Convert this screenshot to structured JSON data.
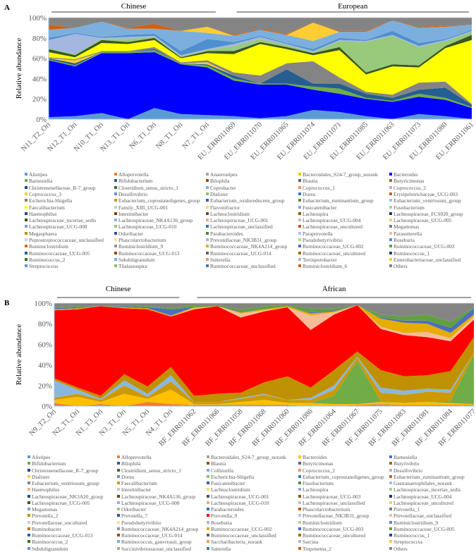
{
  "palette_variants": [
    [
      "#5B9BD5",
      "#ED7D31",
      "#A5A5A5",
      "#FFC000",
      "#4472C4",
      "#70AD47"
    ],
    [
      "#255E91",
      "#9E480E",
      "#636363",
      "#997300",
      "#264478",
      "#43682B"
    ],
    [
      "#7CAFDD",
      "#F1975A",
      "#B7B7B7",
      "#FFCD33",
      "#698ED0",
      "#8CC168"
    ],
    [
      "#327DC2",
      "#D26012",
      "#848484",
      "#CC9A00",
      "#3A5FA8",
      "#5A8A39"
    ],
    [
      "#9DC3E6",
      "#F4B183",
      "#C9C9C9",
      "#FFD966",
      "#8FAADC",
      "#A9D18E"
    ],
    [
      "#1F4E79",
      "#843C0C",
      "#525252",
      "#7F6000",
      "#203864",
      "#385723"
    ],
    [
      "#8AB7E0",
      "#F3A873",
      "#C0C0C0",
      "#FFD34D",
      "#7E9FD6",
      "#99C97A"
    ],
    [
      "#2E75B6",
      "#C55A11",
      "#7B7B7B",
      "#BF9000",
      "#2F5597",
      "#548235"
    ],
    [
      "#A9C9EA",
      "#F6BC98",
      "#D0D0D0",
      "#FFE08A",
      "#A3B7E0",
      "#B5D69C"
    ],
    [
      "#4F8FCF",
      "#E06A1F",
      "#959595",
      "#E6AC00",
      "#4A6FBF",
      "#62A03F"
    ]
  ],
  "chart_data": [
    {
      "panel_label": "A",
      "type": "area",
      "stacked": "percent",
      "title": "",
      "ylabel": "Relative abundance",
      "ylim": [
        0,
        100
      ],
      "yticks": [
        "0%",
        "20%",
        "40%",
        "60%",
        "80%",
        "100%"
      ],
      "groups": [
        {
          "label": "Chinese",
          "from": 0,
          "to": 6
        },
        {
          "label": "European",
          "from": 7,
          "to": 16
        }
      ],
      "categories": [
        "N11_T2_Ori",
        "N12_T1_Ori",
        "N10_T1_Ori",
        "N13_T1_Ori",
        "N6_T1_Ori",
        "N8_T1_Ori",
        "N7_T1_Ori",
        "EU_ERR011069",
        "EU_ERR011070",
        "EU_ERR011065",
        "EU_ERR011074",
        "EU_ERR011071",
        "EU_ERR011085",
        "EU_ERR011063",
        "EU_ERR011073",
        "EU_ERR011080",
        "EU_ERR011061"
      ],
      "color_overrides": {
        "Bacteroides": "#0000FF",
        "Faecalibacterium": "#FFFF00"
      },
      "series": [
        {
          "name": "Alistipes",
          "values": [
            2,
            3,
            6,
            0,
            11,
            5,
            4,
            3,
            1,
            3,
            9,
            7,
            3,
            0,
            5,
            3,
            0
          ]
        },
        {
          "name": "Bacteroides",
          "values": [
            56,
            49,
            59,
            65,
            55,
            49,
            47,
            35,
            33,
            31,
            20,
            18,
            17,
            17,
            17,
            16,
            11
          ]
        },
        {
          "name": "Barnesiella",
          "values": [
            1,
            1,
            1,
            1,
            2,
            1,
            2,
            2,
            1,
            1,
            3,
            5,
            1,
            1,
            3,
            2,
            1
          ]
        },
        {
          "name": "Bifidobacterium",
          "values": [
            1,
            2,
            0,
            0,
            1,
            0,
            1,
            3,
            0,
            14,
            3,
            5,
            4,
            3,
            4,
            10,
            2
          ]
        },
        {
          "name": "Coprococcus_3",
          "values": [
            0,
            3,
            0,
            0,
            0,
            0,
            2,
            0,
            0,
            0,
            0,
            0,
            0,
            0,
            0,
            0,
            0
          ]
        },
        {
          "name": "Escherichia-Shigella",
          "values": [
            1,
            1,
            1,
            1,
            2,
            1,
            2,
            3,
            8,
            6,
            22,
            6,
            2,
            3,
            7,
            6,
            1
          ]
        },
        {
          "name": "Faecalibacterium",
          "values": [
            5,
            2,
            8,
            7,
            7,
            4,
            7,
            18,
            31,
            14,
            6,
            27,
            17,
            28,
            15,
            33,
            63
          ]
        },
        {
          "name": "Lachnospiraceae_incertae_sedis",
          "values": [
            3,
            2,
            3,
            2,
            2,
            1,
            2,
            3,
            2,
            2,
            2,
            3,
            2,
            2,
            2,
            2,
            5
          ]
        },
        {
          "name": "Lachnospiraceae_UCG-010",
          "values": [
            1,
            1,
            1,
            3,
            1,
            1,
            1,
            5,
            3,
            2,
            1,
            6,
            30,
            28,
            18,
            5,
            3
          ]
        },
        {
          "name": "Prevotellaceae_NK3B31_group",
          "values": [
            8,
            20,
            1,
            2,
            1,
            1,
            1,
            2,
            2,
            1,
            1,
            1,
            1,
            1,
            1,
            1,
            1
          ]
        },
        {
          "name": "Roseburia",
          "values": [
            2,
            1,
            1,
            2,
            2,
            4,
            10,
            2,
            1,
            1,
            2,
            2,
            1,
            4,
            3,
            1,
            1
          ]
        },
        {
          "name": "Subdoligranulum",
          "values": [
            8,
            5,
            15,
            6,
            5,
            20,
            6,
            6,
            6,
            8,
            8,
            6,
            8,
            10,
            15,
            12,
            5
          ]
        },
        {
          "name": "Enterobacteriaceae_unclassified",
          "values": [
            0,
            0,
            0,
            0,
            0,
            0,
            6,
            0,
            0,
            0,
            18,
            0,
            0,
            0,
            0,
            0,
            0
          ]
        },
        {
          "name": "Ruminiclostridium_6",
          "values": [
            5,
            0,
            0,
            1,
            5,
            0,
            0,
            1,
            1,
            1,
            0,
            1,
            1,
            0,
            1,
            1,
            0
          ]
        },
        {
          "name": "Others",
          "values": "remainder"
        }
      ],
      "legend": [
        "Alistipes",
        "Alloprevotella",
        "Anaerostipes",
        "Bacteroidales_S24-7_group_norank",
        "Bacteroides",
        "Barnesiella",
        "Bifidobacterium",
        "Bilophila",
        "Blautia",
        "Butyricimonas",
        "Christensenellaceae_R-7_group",
        "Clostridium_sensu_stricto_1",
        "Coprobacter",
        "Coprococcus_1",
        "Coprococcus_2",
        "Coprococcus_3",
        "Desulfovibrio",
        "Dialister",
        "Dorea",
        "Erysipelotrichaceae_UCG-003",
        "Escherichia-Shigella",
        "Eubacterium_coprostanoligenes_group",
        "Eubacterium_oxidoreducens_group",
        "Eubacterium_ruminantium_group",
        "Eubacterium_ventriosum_group",
        "Faecalibacterium",
        "Family_XIII_UCG-001",
        "Flavonifractor",
        "Fusicatenibacter",
        "Fusobacterium",
        "Haemophilus",
        "Intestinibacter",
        "Lachnoclostridium",
        "Lachnospira",
        "Lachnospiraceae_FCS020_group",
        "Lachnospiraceae_incertae_sedis",
        "Lachnospiraceae_NK4A136_group",
        "Lachnospiraceae_UCG-001",
        "Lachnospiraceae_UCG-004",
        "Lachnospiraceae_UCG-005",
        "Lachnospiraceae_UCG-008",
        "Lachnospiraceae_UCG-010",
        "Lachnospiraceae_unclassified",
        "Lachnospiraceae_uncultured",
        "Megamonas",
        "Megasphaera",
        "Odoribacter",
        "Parabacteroides",
        "Paraprevotella",
        "Parasutterella",
        "Peptostreptococcaceae_unclassified",
        "Phascolarctobacterium",
        "Prevotellaceae_NK3B31_group",
        "Pseudobutyrivibrio",
        "Roseburia",
        "Ruminiclostridium",
        "Ruminiclostridium_9",
        "Ruminococcaceae_NK4A214_group",
        "Ruminococcaceae_UCG-002",
        "Ruminococcaceae_UCG-003",
        "Ruminococcaceae_UCG-005",
        "Ruminococcaceae_UCG-013",
        "Ruminococcaceae_UCG-014",
        "Ruminococcaceae_uncultured",
        "Ruminococcus_1",
        "Ruminococcus_2",
        "Subdoligranulum",
        "Sutterella",
        "Terrisporobacter",
        "Enterobacteriaceae_unclassified",
        "Streptococcus",
        "Thalassospira",
        "Ruminococcaceae_unclassified",
        "Ruminiclostridium_6",
        "Others"
      ],
      "legend_placement": "bottom"
    },
    {
      "panel_label": "B",
      "type": "area",
      "stacked": "percent",
      "title": "",
      "ylabel": "Relative abundance",
      "ylim": [
        0,
        100
      ],
      "yticks": [
        "0%",
        "20%",
        "40%",
        "60%",
        "80%",
        "100%"
      ],
      "groups": [
        {
          "label": "Chinese",
          "from": 0,
          "to": 5
        },
        {
          "label": "African",
          "from": 6,
          "to": 18
        }
      ],
      "categories": [
        "N9_T2_Ori",
        "N2_T1_Ori",
        "N1_T3_Ori",
        "N3_T1_Ori",
        "N5_T1_Ori",
        "N4_T1_Ori",
        "BF_ERR011062",
        "BF_ERR011066",
        "BF_ERR011058",
        "BF_ERR011068",
        "BF_ERR011060",
        "BF_ERR011086",
        "BF_ERR011064",
        "BF_ERR011067",
        "BF_ERR011075",
        "BF_ERR011083",
        "BF_ERR011081",
        "BF_ERR011084",
        "BF_ERR011077"
      ],
      "color_overrides": {
        "Prevotella_9": "#FF0000"
      },
      "series": [
        {
          "name": "Alistipes",
          "values": [
            1,
            0,
            1,
            0,
            0,
            0,
            1,
            1,
            1,
            1,
            1,
            0,
            0,
            0,
            1,
            0,
            0,
            0,
            1
          ]
        },
        {
          "name": "Alloprevotella",
          "values": [
            2,
            0,
            1,
            0,
            4,
            2,
            0,
            0,
            0,
            0,
            0,
            0,
            0,
            1,
            1,
            1,
            1,
            1,
            0
          ]
        },
        {
          "name": "Bacteroides",
          "values": [
            3,
            9,
            2,
            12,
            3,
            14,
            1,
            1,
            3,
            5,
            2,
            3,
            2,
            1,
            2,
            2,
            3,
            2,
            1
          ]
        },
        {
          "name": "Bifidobacterium",
          "values": [
            0,
            0,
            0,
            0,
            0,
            0,
            0,
            0,
            0,
            0,
            0,
            0,
            8,
            42,
            1,
            0,
            0,
            2,
            48
          ]
        },
        {
          "name": "Faecalibacterium",
          "values": [
            2,
            3,
            2,
            8,
            2,
            8,
            2,
            2,
            3,
            5,
            3,
            3,
            6,
            3,
            8,
            8,
            10,
            8,
            2
          ]
        },
        {
          "name": "Lachnospiraceae_UCG-008",
          "values": [
            17,
            4,
            1,
            5,
            3,
            6,
            0,
            0,
            1,
            1,
            0,
            2,
            4,
            1,
            5,
            4,
            3,
            3,
            0
          ]
        },
        {
          "name": "Prevotella_2",
          "values": [
            2,
            2,
            3,
            6,
            7,
            8,
            6,
            8,
            5,
            11,
            23,
            10,
            15,
            5,
            17,
            14,
            13,
            18,
            15
          ]
        },
        {
          "name": "Prevotella_9",
          "values": [
            66,
            76,
            87,
            64,
            75,
            49,
            84,
            85,
            73,
            69,
            67,
            56,
            54,
            45,
            40,
            40,
            37,
            29,
            17
          ]
        },
        {
          "name": "Prevotellaceae_unclassified",
          "values": [
            0,
            0,
            0,
            0,
            0,
            0,
            1,
            0,
            4,
            1,
            0,
            14,
            2,
            0,
            2,
            2,
            5,
            3,
            3
          ]
        },
        {
          "name": "Ruminococcaceae_UCG-002",
          "values": [
            1,
            1,
            0,
            1,
            1,
            1,
            1,
            0,
            1,
            1,
            1,
            2,
            1,
            0,
            8,
            10,
            8,
            5,
            2
          ]
        },
        {
          "name": "Ruminococcaceae_UCG-003",
          "values": [
            1,
            1,
            0,
            1,
            1,
            6,
            0,
            0,
            1,
            0,
            0,
            1,
            1,
            0,
            1,
            2,
            3,
            5,
            6
          ]
        },
        {
          "name": "Ruminococcaceae_UCG-005",
          "values": [
            1,
            1,
            0,
            1,
            1,
            1,
            2,
            1,
            2,
            3,
            1,
            4,
            2,
            0,
            3,
            4,
            6,
            6,
            1
          ]
        },
        {
          "name": "Others",
          "values": "remainder"
        }
      ],
      "legend": [
        "Alistipes",
        "Alloprevotella",
        "Bacteroidales_S24-7_group_norank",
        "Bacteroides",
        "Barnesiella",
        "Bifidobacterium",
        "Bilophila",
        "Blautia",
        "Butyricimonas",
        "Butyrivibrio",
        "Christensenellaceae_R-7_group",
        "Clostridium_sensu_stricto_1",
        "Collinsella",
        "Coprococcus_2",
        "Desulfovibrio",
        "Dialister",
        "Dorea",
        "Escherichia-Shigella",
        "Eubacterium_coprostanoligenes_group",
        "Eubacterium_ruminantium_group",
        "Eubacterium_ventriosum_group",
        "Faecalibacterium",
        "Fusicatenibacter",
        "Fusobacterium",
        "Gastranaerophilales_norank",
        "Haemophilus",
        "Intestinibacter",
        "Lachnoclostridium",
        "Lachnospira",
        "Lachnospiraceae_incertae_sedis",
        "Lachnospiraceae_NK3A20_group",
        "Lachnospiraceae_NK4A136_group",
        "Lachnospiraceae_UCG-001",
        "Lachnospiraceae_UCG-003",
        "Lachnospiraceae_UCG-004",
        "Lachnospiraceae_UCG-005",
        "Lachnospiraceae_UCG-008",
        "Lachnospiraceae_UCG-010",
        "Lachnospiraceae_unclassified",
        "Lachnospiraceae_uncultured",
        "Megamonas",
        "Odoribacter",
        "Parabacteroides",
        "Phascolarctobacterium",
        "Prevotella_1",
        "Prevotella_2",
        "Prevotella_7",
        "Prevotella_9",
        "Prevotellaceae_NK3B31_group",
        "Prevotellaceae_unclassified",
        "Prevotellaceae_uncultured",
        "Pseudobutyrivibrio",
        "Roseburia",
        "Ruminiclostridium",
        "Ruminiclostridium_9",
        "Ruminobacter",
        "Ruminococcaceae_NK4A214_group",
        "Ruminococcaceae_UCG-002",
        "Ruminococcaceae_UCG-003",
        "Ruminococcaceae_UCG-005",
        "Ruminococcaceae_UCG-013",
        "Ruminococcaceae_UCG-014",
        "Ruminococcaceae_unclassified",
        "Ruminococcaceae_uncultured",
        "Ruminococcus_1",
        "Ruminococcus_2",
        "Ruminococcus_gauvreauii_group",
        "Saccharibacteria_norank",
        "Sarcina",
        "Streptococcus",
        "Subdoligranulum",
        "Succinivibrionaceae_unclassified",
        "Sutterella",
        "Treponema_2",
        "Others"
      ],
      "legend_placement": "bottom"
    }
  ]
}
